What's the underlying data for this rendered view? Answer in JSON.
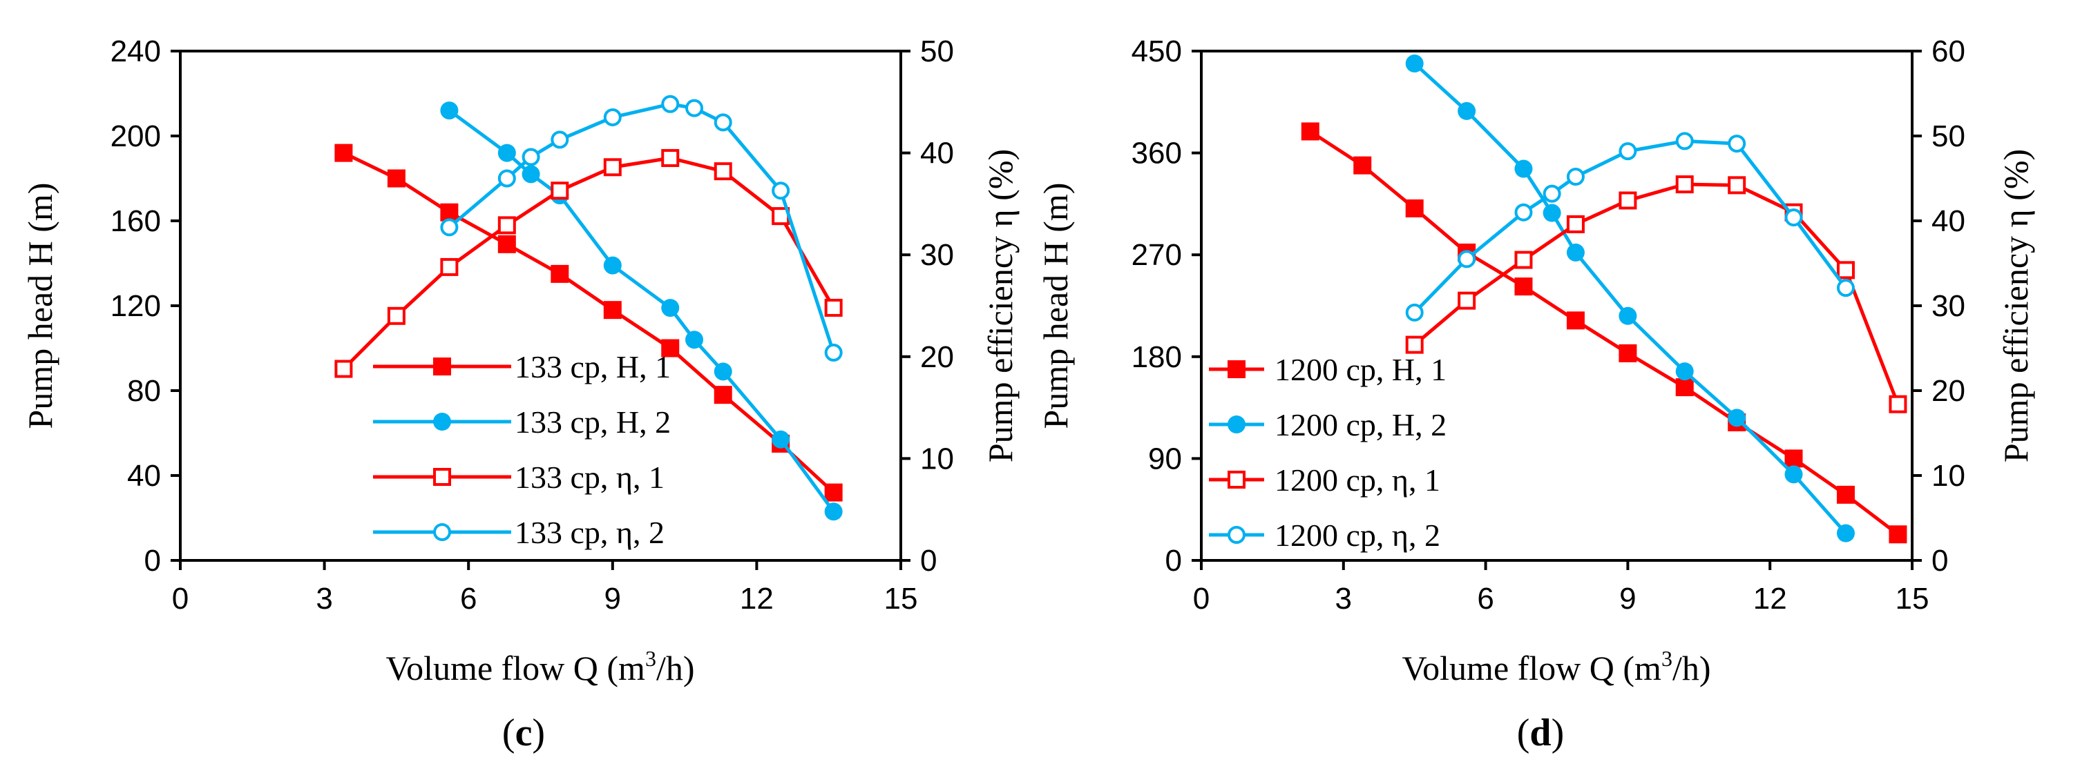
{
  "chart_data": [
    {
      "type": "line",
      "panel_label": "c",
      "xlabel": "Volume flow Q (m³/h)",
      "xlabel_parts": {
        "pre": "Volume flow Q (m",
        "sup": "3",
        "post": "/h)"
      },
      "ylabel": "Pump head H (m)",
      "y2label": "Pump efficiency η (%)",
      "xlim": [
        0,
        15
      ],
      "ylim": [
        0,
        240
      ],
      "y2lim": [
        0,
        50
      ],
      "xticks": [
        "0",
        "3",
        "6",
        "9",
        "12",
        "15"
      ],
      "yticks": [
        "0",
        "40",
        "80",
        "120",
        "160",
        "200",
        "240"
      ],
      "y2ticks": [
        "0",
        "10",
        "20",
        "30",
        "40",
        "50"
      ],
      "legend_position": "lower-left",
      "series": [
        {
          "name": "133 cp, H, 1",
          "axis": "left",
          "color": "#ff0000",
          "marker": "square-filled",
          "x": [
            3.4,
            4.5,
            5.6,
            6.8,
            7.9,
            9.0,
            10.2,
            11.3,
            12.5,
            13.6
          ],
          "y": [
            192,
            180,
            164,
            149,
            135,
            118,
            100,
            78,
            55,
            32
          ]
        },
        {
          "name": "133 cp, H, 2",
          "axis": "left",
          "color": "#00b0f0",
          "marker": "circle-filled",
          "x": [
            5.6,
            6.8,
            7.3,
            7.9,
            9.0,
            10.2,
            10.7,
            11.3,
            12.5,
            13.6
          ],
          "y": [
            212,
            192,
            182,
            172,
            139,
            119,
            104,
            89,
            57,
            23
          ]
        },
        {
          "name": "133 cp, η, 1",
          "axis": "right",
          "color": "#ff0000",
          "marker": "square-open",
          "x": [
            3.4,
            4.5,
            5.6,
            6.8,
            7.9,
            9.0,
            10.2,
            11.3,
            12.5,
            13.6
          ],
          "y": [
            18.8,
            24.0,
            28.8,
            32.9,
            36.3,
            38.6,
            39.5,
            38.2,
            33.8,
            24.8
          ]
        },
        {
          "name": "133 cp, η, 2",
          "axis": "right",
          "color": "#00b0f0",
          "marker": "circle-open",
          "x": [
            5.6,
            6.8,
            7.3,
            7.9,
            9.0,
            10.2,
            10.7,
            11.3,
            12.5,
            13.6
          ],
          "y": [
            32.7,
            37.5,
            39.6,
            41.3,
            43.5,
            44.8,
            44.4,
            43.0,
            36.3,
            20.4
          ]
        }
      ]
    },
    {
      "type": "line",
      "panel_label": "d",
      "xlabel": "Volume flow Q (m³/h)",
      "xlabel_parts": {
        "pre": "Volume flow Q (m",
        "sup": "3",
        "post": "/h)"
      },
      "ylabel": "Pump head H (m)",
      "y2label": "Pump efficiency η (%)",
      "xlim": [
        0,
        15
      ],
      "ylim": [
        0,
        450
      ],
      "y2lim": [
        0,
        60
      ],
      "xticks": [
        "0",
        "3",
        "6",
        "9",
        "12",
        "15"
      ],
      "yticks": [
        "0",
        "90",
        "180",
        "270",
        "360",
        "450"
      ],
      "y2ticks": [
        "0",
        "10",
        "20",
        "30",
        "40",
        "50",
        "60"
      ],
      "legend_position": "lower-left",
      "series": [
        {
          "name": "1200 cp, H, 1",
          "axis": "left",
          "color": "#ff0000",
          "marker": "square-filled",
          "x": [
            2.3,
            3.4,
            4.5,
            5.6,
            6.8,
            7.9,
            9.0,
            10.2,
            11.3,
            12.5,
            13.6,
            14.7
          ],
          "y": [
            379,
            349,
            311,
            272,
            242,
            212,
            183,
            153,
            122,
            90,
            58,
            23
          ]
        },
        {
          "name": "1200 cp, H, 2",
          "axis": "left",
          "color": "#00b0f0",
          "marker": "circle-filled",
          "x": [
            4.5,
            5.6,
            6.8,
            7.4,
            7.9,
            9.0,
            10.2,
            11.3,
            12.5,
            13.6
          ],
          "y": [
            439,
            397,
            346,
            307,
            272,
            216,
            167,
            126,
            76,
            24
          ]
        },
        {
          "name": "1200 cp, η, 1",
          "axis": "right",
          "color": "#ff0000",
          "marker": "square-open",
          "x": [
            4.5,
            5.6,
            6.8,
            7.9,
            9.0,
            10.2,
            11.3,
            12.5,
            13.6,
            14.7
          ],
          "y": [
            25.4,
            30.6,
            35.4,
            39.6,
            42.4,
            44.3,
            44.2,
            41.0,
            34.2,
            18.4
          ]
        },
        {
          "name": "1200 cp, η, 2",
          "axis": "right",
          "color": "#00b0f0",
          "marker": "circle-open",
          "x": [
            4.5,
            5.6,
            6.8,
            7.4,
            7.9,
            9.0,
            10.2,
            11.3,
            12.5,
            13.6
          ],
          "y": [
            29.2,
            35.5,
            41.0,
            43.2,
            45.2,
            48.2,
            49.4,
            49.1,
            40.4,
            32.1
          ]
        }
      ]
    }
  ]
}
